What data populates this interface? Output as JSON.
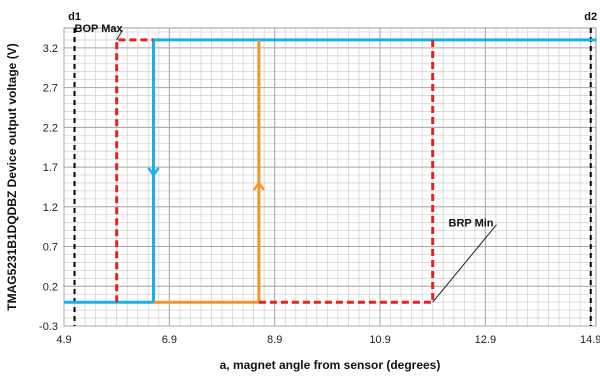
{
  "chart_data": {
    "type": "line",
    "title": "",
    "xlabel": "a, magnet angle from sensor (degrees)",
    "ylabel": "TMAG5231B1DQDBZ Device output voltage (V)",
    "xlim": [
      4.9,
      15.0
    ],
    "ylim": [
      -0.3,
      3.45
    ],
    "x_ticks": [
      "4.9",
      "6.9",
      "8.9",
      "10.9",
      "12.9",
      "14.9"
    ],
    "x_tick_values": [
      4.9,
      6.9,
      8.9,
      10.9,
      12.9,
      14.9
    ],
    "y_ticks": [
      "-0.3",
      "0.2",
      "0.7",
      "1.2",
      "1.7",
      "2.2",
      "2.7",
      "3.2"
    ],
    "y_tick_values": [
      -0.3,
      0.2,
      0.7,
      1.2,
      1.7,
      2.2,
      2.7,
      3.2
    ],
    "grid": true,
    "series": [
      {
        "color": "#1ab0e8",
        "style": "solid",
        "points": [
          [
            4.9,
            0.0
          ],
          [
            6.6,
            0.0
          ],
          [
            6.6,
            3.3
          ],
          [
            15.0,
            3.3
          ]
        ],
        "arrow": {
          "x": 6.6,
          "y": 1.6,
          "direction": "down"
        }
      },
      {
        "color": "#f0962e",
        "style": "solid",
        "points": [
          [
            6.6,
            0.0
          ],
          [
            8.6,
            0.0
          ],
          [
            8.6,
            3.3
          ]
        ],
        "arrow": {
          "x": 8.6,
          "y": 1.5,
          "direction": "up"
        }
      },
      {
        "color": "#e82020",
        "style": "dashed",
        "points": [
          [
            5.9,
            0.0
          ],
          [
            5.9,
            3.3
          ],
          [
            6.6,
            3.3
          ]
        ],
        "arrow": null
      },
      {
        "color": "#e82020",
        "style": "dashed",
        "points": [
          [
            8.6,
            0.0
          ],
          [
            11.9,
            0.0
          ],
          [
            11.9,
            3.3
          ]
        ],
        "arrow": null
      }
    ],
    "vlines": [
      {
        "label": "d1",
        "x": 5.1,
        "color": "#000000"
      },
      {
        "label": "d2",
        "x": 14.9,
        "color": "#000000"
      }
    ],
    "annotations": [
      {
        "text": "BOP Max",
        "x": 5.9,
        "y": 3.3,
        "text_x": 5.1,
        "text_y": 3.45
      },
      {
        "text": "BRP Min",
        "x": 11.9,
        "y": 0.0,
        "text_x": 12.2,
        "text_y": 1.0
      }
    ]
  }
}
